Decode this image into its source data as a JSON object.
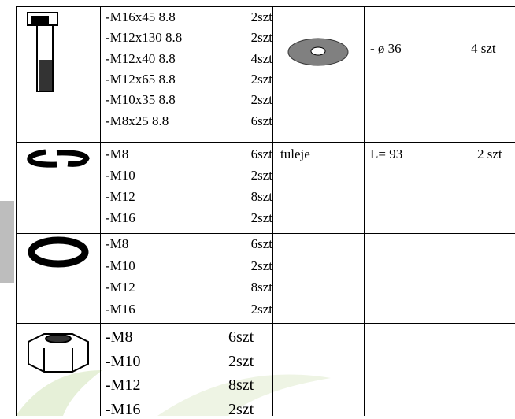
{
  "table": {
    "rows": [
      {
        "items": [
          {
            "name": "-M16x45 8.8",
            "qty": "2szt"
          },
          {
            "name": "-M12x130 8.8",
            "qty": "2szt"
          },
          {
            "name": "-M12x40 8.8",
            "qty": "4szt"
          },
          {
            "name": "-M12x65 8.8",
            "qty": "2szt"
          },
          {
            "name": "-M10x35 8.8",
            "qty": "2szt"
          },
          {
            "name": "-M8x25 8.8",
            "qty": "6szt"
          }
        ],
        "extra_label": "- ø 36",
        "extra_qty": "4 szt"
      },
      {
        "items": [
          {
            "name": "-M8",
            "qty": "6szt"
          },
          {
            "name": "-M10",
            "qty": "2szt"
          },
          {
            "name": "-M12",
            "qty": "8szt"
          },
          {
            "name": "-M16",
            "qty": "2szt"
          }
        ],
        "kind": "tuleje",
        "extra_label": "L= 93",
        "extra_qty": "2 szt"
      },
      {
        "items": [
          {
            "name": "-M8",
            "qty": "6szt"
          },
          {
            "name": "-M10",
            "qty": "2szt"
          },
          {
            "name": "-M12",
            "qty": "8szt"
          },
          {
            "name": "-M16",
            "qty": "2szt"
          }
        ]
      },
      {
        "items": [
          {
            "name": "-M8",
            "qty": "6szt"
          },
          {
            "name": "-M10",
            "qty": "2szt"
          },
          {
            "name": "-M12",
            "qty": "8szt"
          },
          {
            "name": "-M16",
            "qty": "2szt"
          }
        ]
      }
    ]
  }
}
